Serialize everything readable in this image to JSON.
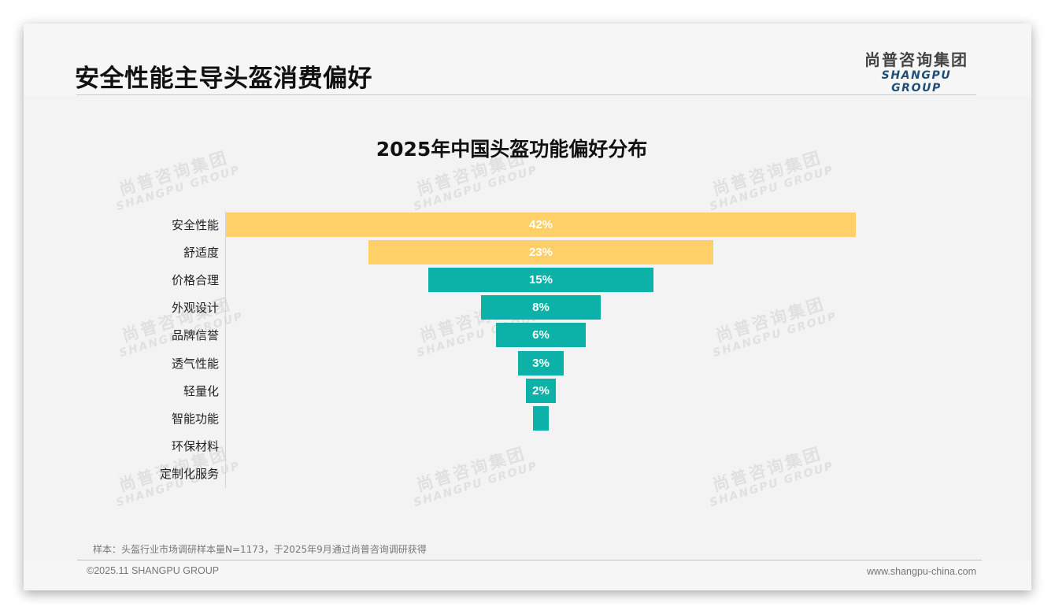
{
  "header": {
    "page_title": "安全性能主导头盔消费偏好",
    "logo_cn": "尚普咨询集团",
    "logo_en": "SHANGPU GROUP"
  },
  "watermark": {
    "cn": "尚普咨询集团",
    "en": "SHANGPU GROUP"
  },
  "colors": {
    "top_bars": "#ffd068",
    "other_bars": "#0cb1a8",
    "background": "#f3f3f3",
    "logo_en": "#1f4e79"
  },
  "chart_data": {
    "type": "bar",
    "subtype": "funnel (centered horizontal bars)",
    "title": "2025年中国头盔功能偏好分布",
    "xlabel": "",
    "ylabel": "",
    "categories": [
      "安全性能",
      "舒适度",
      "价格合理",
      "外观设计",
      "品牌信誉",
      "透气性能",
      "轻量化",
      "智能功能",
      "环保材料",
      "定制化服务"
    ],
    "values": [
      42,
      23,
      15,
      8,
      6,
      3,
      2,
      1,
      0,
      0
    ],
    "labels": [
      "42%",
      "23%",
      "15%",
      "8%",
      "6%",
      "3%",
      "2%",
      "",
      "",
      ""
    ],
    "unit": "%",
    "grid": false,
    "legend": null,
    "highlight": [
      "安全性能",
      "舒适度"
    ]
  },
  "footer": {
    "note": "样本：头盔行业市场调研样本量N=1173，于2025年9月通过尚普咨询调研获得",
    "copyright": "©2025.11 SHANGPU GROUP",
    "website": "www.shangpu-china.com"
  }
}
